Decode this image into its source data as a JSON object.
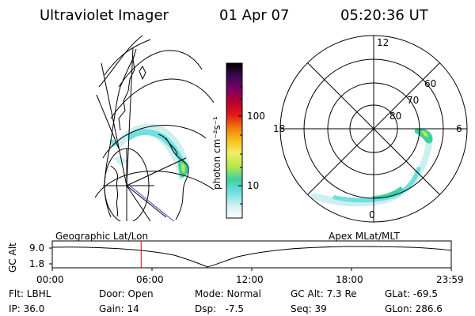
{
  "header": {
    "instrument": "Ultraviolet Imager",
    "date": "01 Apr 07",
    "time": "05:20:36 UT"
  },
  "colorbar": {
    "unit_label": "photon cm⁻²s⁻¹",
    "tick_labels": [
      "100",
      "10"
    ],
    "colors": [
      "#000000",
      "#3a0a55",
      "#7a0060",
      "#b8002e",
      "#e01818",
      "#f07a10",
      "#f7c21a",
      "#f0ef68",
      "#b6e84a",
      "#3fd0a0",
      "#6fe0e0",
      "#cdeff0",
      "#ffffff"
    ]
  },
  "polar_plot": {
    "mlt_labels": [
      "12",
      "18",
      "6",
      "0"
    ],
    "mlat_labels": [
      "60",
      "70",
      "80"
    ]
  },
  "timeline": {
    "left_title": "Geographic Lat/Lon",
    "right_title": "Apex MLat/MLT",
    "y_axis_label": "GC Alt",
    "y_ticks": [
      "9.0",
      "1.8"
    ],
    "x_ticks": [
      "00:00",
      "06:00",
      "12:00",
      "18:00",
      "23:59"
    ],
    "marker_time": "05:20:36",
    "marker_color": "#e00000"
  },
  "status": {
    "flt": "Flt: LBHL",
    "ip": "IP: 36.0",
    "door": "Door: Open",
    "gain": "Gain: 14",
    "mode": "Mode: Normal",
    "dsp": "Dsp:   -7.5",
    "gc_alt": "GC Alt: 7.3 Re",
    "seq": "Seq: 39",
    "glat": "GLat: -69.5",
    "glon": "GLon: 286.6"
  }
}
